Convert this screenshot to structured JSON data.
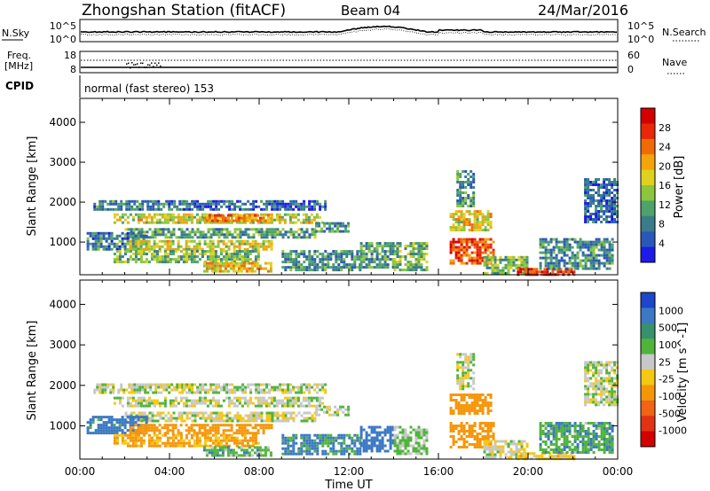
{
  "header": {
    "station": "Zhongshan Station (fitACF)",
    "beam": "Beam 04",
    "date": "24/Mar/2016"
  },
  "summary_panels": {
    "n_sky_label": "N.Sky",
    "n_search_label": "N.Search",
    "freq_label_line1": "Freq.",
    "freq_label_line2": "[MHz]",
    "nave_label": "Nave",
    "cpid_label": "CPID",
    "cpid_text": "normal (fast stereo) 153",
    "noise_ticks_left": [
      "10^5",
      "10^0"
    ],
    "noise_ticks_right": [
      "10^5",
      "10^0"
    ],
    "freq_ticks_left": [
      "18",
      "8"
    ],
    "nave_ticks_right": [
      "60",
      "0"
    ]
  },
  "axes": {
    "y_label": "Slant Range [km]",
    "x_label": "Time UT",
    "x_ticks": [
      "00:00",
      "04:00",
      "08:00",
      "12:00",
      "16:00",
      "20:00",
      "00:00"
    ],
    "y_ticks": [
      "1000",
      "2000",
      "3000",
      "4000"
    ]
  },
  "colorbars": {
    "power": {
      "label": "Power [dB]",
      "ticks": [
        "4",
        "8",
        "12",
        "16",
        "20",
        "24",
        "28"
      ],
      "colors": [
        "#1c1ce6",
        "#2a58b8",
        "#3a7c8a",
        "#4da36a",
        "#8cc63c",
        "#e0d020",
        "#f5a30a",
        "#f06a08",
        "#e82808",
        "#d40000"
      ]
    },
    "velocity": {
      "label": "Velocity [m s^-1]",
      "ticks": [
        "1000",
        "500",
        "100",
        "25",
        "-25",
        "-100",
        "-500",
        "-1000"
      ],
      "colors": [
        "#1e46c8",
        "#3c78c3",
        "#37916e",
        "#50b43c",
        "#c8c8c8",
        "#f5c814",
        "#f5960a",
        "#f06414",
        "#e13214",
        "#d20000"
      ]
    }
  },
  "chart_data": [
    {
      "type": "heatmap",
      "title": "Power",
      "xlabel": "Time UT",
      "ylabel": "Slant Range [km]",
      "xlim": [
        0,
        24
      ],
      "ylim": [
        180,
        4600
      ],
      "colorbar": {
        "label": "Power [dB]",
        "range": [
          0,
          32
        ]
      },
      "echo_regions": [
        {
          "t": [
            0.6,
            4.6
          ],
          "r": [
            1800,
            2050
          ],
          "v": 8
        },
        {
          "t": [
            4.6,
            10.9
          ],
          "r": [
            1850,
            2050
          ],
          "v": 6
        },
        {
          "t": [
            1.5,
            10.8
          ],
          "r": [
            1480,
            1720
          ],
          "v": 17
        },
        {
          "t": [
            5.5,
            8.5
          ],
          "r": [
            1560,
            1700
          ],
          "v": 23
        },
        {
          "t": [
            2.0,
            10.5
          ],
          "r": [
            1150,
            1350
          ],
          "v": 11
        },
        {
          "t": [
            0.3,
            3.0
          ],
          "r": [
            850,
            1250
          ],
          "v": 8
        },
        {
          "t": [
            2.2,
            8.5
          ],
          "r": [
            820,
            1050
          ],
          "v": 17
        },
        {
          "t": [
            1.5,
            8.0
          ],
          "r": [
            500,
            800
          ],
          "v": 13
        },
        {
          "t": [
            5.5,
            8.5
          ],
          "r": [
            250,
            500
          ],
          "v": 19
        },
        {
          "t": [
            9.0,
            12.5
          ],
          "r": [
            300,
            800
          ],
          "v": 9
        },
        {
          "t": [
            10.5,
            12.0
          ],
          "r": [
            1300,
            1500
          ],
          "v": 9
        },
        {
          "t": [
            12.5,
            14.0
          ],
          "r": [
            400,
            1000
          ],
          "v": 10
        },
        {
          "t": [
            14.0,
            15.5
          ],
          "r": [
            300,
            1000
          ],
          "v": 12
        },
        {
          "t": [
            16.5,
            18.5
          ],
          "r": [
            500,
            1100
          ],
          "v": 25
        },
        {
          "t": [
            16.5,
            18.3
          ],
          "r": [
            1300,
            1800
          ],
          "v": 18
        },
        {
          "t": [
            16.8,
            17.6
          ],
          "r": [
            1900,
            2800
          ],
          "v": 9
        },
        {
          "t": [
            18.0,
            20.0
          ],
          "r": [
            250,
            650
          ],
          "v": 12
        },
        {
          "t": [
            19.5,
            22.0
          ],
          "r": [
            200,
            350
          ],
          "v": 28
        },
        {
          "t": [
            20.5,
            23.8
          ],
          "r": [
            350,
            1100
          ],
          "v": 9
        },
        {
          "t": [
            22.5,
            24.0
          ],
          "r": [
            1500,
            2600
          ],
          "v": 6
        }
      ]
    },
    {
      "type": "heatmap",
      "title": "Velocity",
      "xlabel": "Time UT",
      "ylabel": "Slant Range [km]",
      "xlim": [
        0,
        24
      ],
      "ylim": [
        180,
        4600
      ],
      "colorbar": {
        "label": "Velocity [m s^-1]",
        "range": [
          -1000,
          1000
        ]
      },
      "echo_regions": [
        {
          "t": [
            0.6,
            4.6
          ],
          "r": [
            1800,
            2050
          ],
          "v": 0
        },
        {
          "t": [
            4.6,
            10.9
          ],
          "r": [
            1850,
            2050
          ],
          "v": 10
        },
        {
          "t": [
            1.5,
            10.8
          ],
          "r": [
            1480,
            1720
          ],
          "v": 5
        },
        {
          "t": [
            2.0,
            10.5
          ],
          "r": [
            1150,
            1350
          ],
          "v": -10
        },
        {
          "t": [
            0.3,
            3.0
          ],
          "r": [
            850,
            1250
          ],
          "v": 150
        },
        {
          "t": [
            2.2,
            8.5
          ],
          "r": [
            820,
            1050
          ],
          "v": -250
        },
        {
          "t": [
            1.5,
            8.0
          ],
          "r": [
            500,
            800
          ],
          "v": -120
        },
        {
          "t": [
            5.5,
            8.5
          ],
          "r": [
            250,
            500
          ],
          "v": 60
        },
        {
          "t": [
            9.0,
            12.5
          ],
          "r": [
            300,
            800
          ],
          "v": 120
        },
        {
          "t": [
            10.5,
            12.0
          ],
          "r": [
            1300,
            1500
          ],
          "v": 5
        },
        {
          "t": [
            12.5,
            14.0
          ],
          "r": [
            400,
            1000
          ],
          "v": 200
        },
        {
          "t": [
            14.0,
            15.5
          ],
          "r": [
            300,
            1000
          ],
          "v": 40
        },
        {
          "t": [
            16.5,
            18.5
          ],
          "r": [
            500,
            1100
          ],
          "v": -300
        },
        {
          "t": [
            16.5,
            18.3
          ],
          "r": [
            1300,
            1800
          ],
          "v": -250
        },
        {
          "t": [
            16.8,
            17.6
          ],
          "r": [
            1900,
            2800
          ],
          "v": 0
        },
        {
          "t": [
            18.0,
            20.0
          ],
          "r": [
            250,
            650
          ],
          "v": -5
        },
        {
          "t": [
            19.5,
            22.0
          ],
          "r": [
            200,
            350
          ],
          "v": -60
        },
        {
          "t": [
            20.5,
            23.8
          ],
          "r": [
            350,
            1100
          ],
          "v": 80
        },
        {
          "t": [
            22.5,
            24.0
          ],
          "r": [
            1500,
            2600
          ],
          "v": 5
        }
      ]
    }
  ]
}
